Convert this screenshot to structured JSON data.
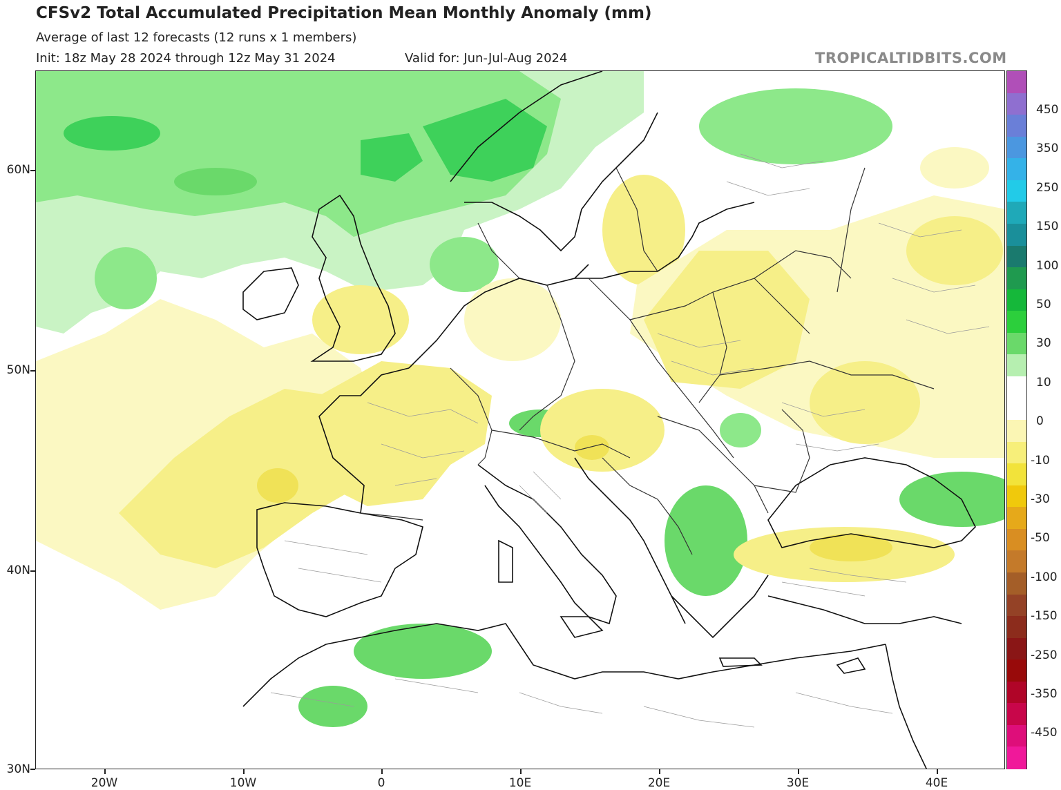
{
  "header": {
    "title": "CFSv2 Total Accumulated Precipitation Mean Monthly Anomaly (mm)",
    "subtitle": "Average of last 12 forecasts (12 runs x 1 members)",
    "init": "Init: 18z May 28 2024 through 12z May 31 2024",
    "valid": "Valid for: Jun-Jul-Aug 2024",
    "brand": "TROPICALTIDBITS.COM"
  },
  "axes": {
    "lat_labels": [
      "60N",
      "50N",
      "40N",
      "30N"
    ],
    "lon_labels": [
      "20W",
      "10W",
      "0",
      "10E",
      "20E",
      "30E",
      "40E"
    ]
  },
  "colorbar": {
    "labels": [
      "450",
      "350",
      "250",
      "150",
      "100",
      "50",
      "30",
      "10",
      "0",
      "-10",
      "-30",
      "-50",
      "-100",
      "-150",
      "-250",
      "-350",
      "-450"
    ],
    "colors": [
      "#b04fb8",
      "#8f6fd0",
      "#6a7fd8",
      "#4b97e0",
      "#34b2e8",
      "#22cbe8",
      "#1fa9b8",
      "#1a8f9a",
      "#1a7a6e",
      "#1f9a4f",
      "#15b83a",
      "#2ccf3c",
      "#6ad96a",
      "#b6efb0",
      "#ffffff",
      "#ffffff",
      "#fbf6b4",
      "#f7ef7a",
      "#f2e33a",
      "#f0c90c",
      "#e6a91a",
      "#d98e22",
      "#c47a2a",
      "#a45e28",
      "#944226",
      "#8c2c1c",
      "#8a1616",
      "#980a0a",
      "#b00528",
      "#c8064a",
      "#de0e7a",
      "#f0189a"
    ]
  },
  "legend_regions": {
    "wet": "#8de88a",
    "wet_strong": "#3ed15a",
    "wet_light": "#c9f3c4",
    "dry_light": "#fbf8c2",
    "dry": "#f6ef88",
    "dry_strong": "#f0e257"
  }
}
